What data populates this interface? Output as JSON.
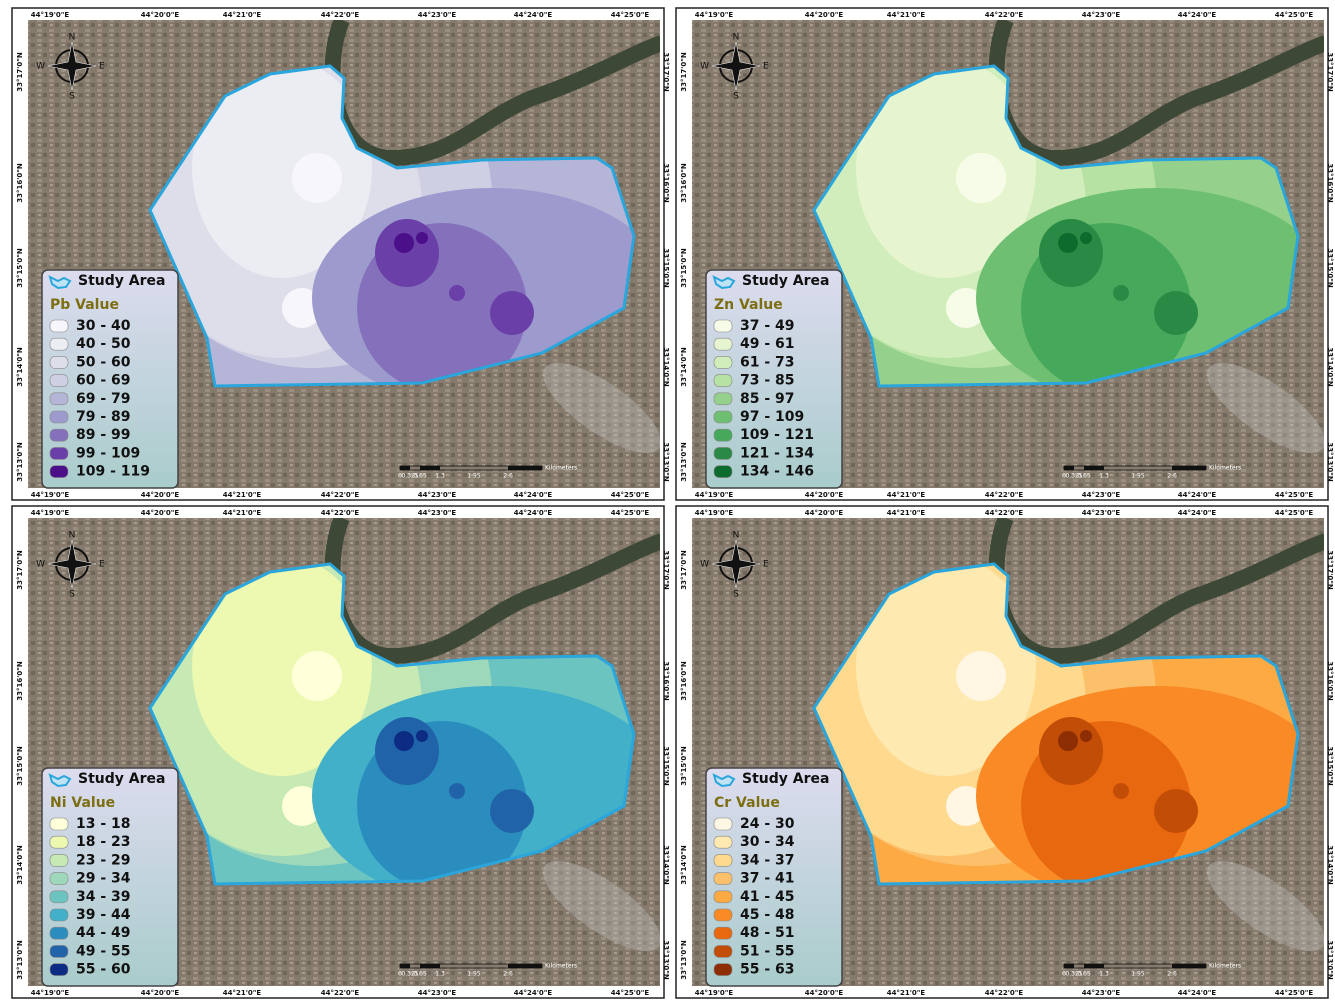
{
  "graticule": {
    "longitudes": [
      "44°19'0\"E",
      "44°20'0\"E",
      "44°21'0\"E",
      "44°22'0\"E",
      "44°23'0\"E",
      "44°24'0\"E",
      "44°25'0\"E"
    ],
    "latitudes": [
      "33°17'0\"N",
      "33°16'0\"N",
      "33°15'0\"N",
      "33°14'0\"N",
      "33°13'0\"N"
    ]
  },
  "compass": {
    "north": "N",
    "south": "S",
    "east": "E",
    "west": "W"
  },
  "scale_bar": {
    "labels": [
      "0",
      "0.325",
      "0.65",
      "1.3",
      "1.95",
      "2.6"
    ],
    "unit": "Kilometers"
  },
  "panels": [
    {
      "study_area_label": "Study Area",
      "legend_title": "Pb Value",
      "classes": [
        {
          "label": "30 - 40",
          "color": "#f6f6fb"
        },
        {
          "label": "40 - 50",
          "color": "#ececf3"
        },
        {
          "label": "50 - 60",
          "color": "#dedeeb"
        },
        {
          "label": "60 - 69",
          "color": "#cfcfe4"
        },
        {
          "label": "69 - 79",
          "color": "#b5b5d8"
        },
        {
          "label": "79 - 89",
          "color": "#9d9ace"
        },
        {
          "label": "89 - 99",
          "color": "#8470bb"
        },
        {
          "label": "99 - 109",
          "color": "#6a3fa8"
        },
        {
          "label": "109 - 119",
          "color": "#4b0f8a"
        }
      ]
    },
    {
      "study_area_label": "Study Area",
      "legend_title": "Zn Value",
      "classes": [
        {
          "label": "37 - 49",
          "color": "#f7fce8"
        },
        {
          "label": "49 - 61",
          "color": "#e6f5cf"
        },
        {
          "label": "61 - 73",
          "color": "#d1edbb"
        },
        {
          "label": "73 - 85",
          "color": "#b6e2a4"
        },
        {
          "label": "85 - 97",
          "color": "#95d18c"
        },
        {
          "label": "97 - 109",
          "color": "#6fbf72"
        },
        {
          "label": "109 - 121",
          "color": "#46a85a"
        },
        {
          "label": "121 - 134",
          "color": "#288a44"
        },
        {
          "label": "134 - 146",
          "color": "#0e6b2e"
        }
      ]
    },
    {
      "study_area_label": "Study Area",
      "legend_title": "Ni Value",
      "classes": [
        {
          "label": "13 - 18",
          "color": "#ffffd9"
        },
        {
          "label": "18 - 23",
          "color": "#edf8b1"
        },
        {
          "label": "23 - 29",
          "color": "#c7e9b4"
        },
        {
          "label": "29 - 34",
          "color": "#9ed8bb"
        },
        {
          "label": "34 - 39",
          "color": "#6cc4c0"
        },
        {
          "label": "39 - 44",
          "color": "#41b0c8"
        },
        {
          "label": "44 - 49",
          "color": "#2b8cbe"
        },
        {
          "label": "49 - 55",
          "color": "#2163a8"
        },
        {
          "label": "55 - 60",
          "color": "#0c2c84"
        }
      ]
    },
    {
      "study_area_label": "Study Area",
      "legend_title": "Cr Value",
      "classes": [
        {
          "label": "24 - 30",
          "color": "#fff7e3"
        },
        {
          "label": "30 - 34",
          "color": "#fee9b0"
        },
        {
          "label": "34 - 37",
          "color": "#fed98e"
        },
        {
          "label": "37 - 41",
          "color": "#fdc06a"
        },
        {
          "label": "41 - 45",
          "color": "#fdaa45"
        },
        {
          "label": "45 - 48",
          "color": "#f98a25"
        },
        {
          "label": "48 - 51",
          "color": "#e8680f"
        },
        {
          "label": "51 - 55",
          "color": "#c24d07"
        },
        {
          "label": "55 - 63",
          "color": "#8c2d04"
        }
      ]
    }
  ]
}
